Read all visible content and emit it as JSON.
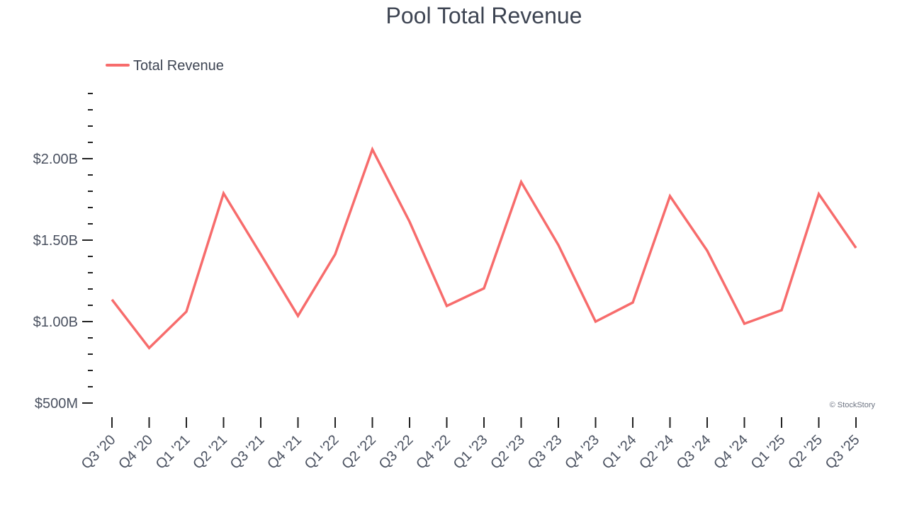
{
  "chart_data": {
    "type": "line",
    "title": "Pool Total Revenue",
    "xlabel": "",
    "ylabel": "",
    "categories": [
      "Q3 '20",
      "Q4 '20",
      "Q1 '21",
      "Q2 '21",
      "Q3 '21",
      "Q4 '21",
      "Q1 '22",
      "Q2 '22",
      "Q3 '22",
      "Q4 '22",
      "Q1 '23",
      "Q2 '23",
      "Q3 '23",
      "Q4 '23",
      "Q1 '24",
      "Q2 '24",
      "Q3 '24",
      "Q4 '24",
      "Q1 '25",
      "Q2 '25",
      "Q3 '25"
    ],
    "series": [
      {
        "name": "Total Revenue",
        "color": "#f76c6c",
        "values_millions": [
          1135,
          838,
          1061,
          1787,
          1413,
          1035,
          1413,
          2057,
          1613,
          1096,
          1204,
          1857,
          1470,
          1000,
          1117,
          1770,
          1435,
          987,
          1070,
          1783,
          1452
        ]
      }
    ],
    "ylim_millions": [
      500,
      2400
    ],
    "y_major_ticks": [
      {
        "value": 500,
        "label": "$500M"
      },
      {
        "value": 1000,
        "label": "$1.00B"
      },
      {
        "value": 1500,
        "label": "$1.50B"
      },
      {
        "value": 2000,
        "label": "$2.00B"
      }
    ],
    "y_minor_tick_step_millions": 100,
    "grid": false,
    "legend_placement": "top-left",
    "watermark": "© StockStory"
  }
}
